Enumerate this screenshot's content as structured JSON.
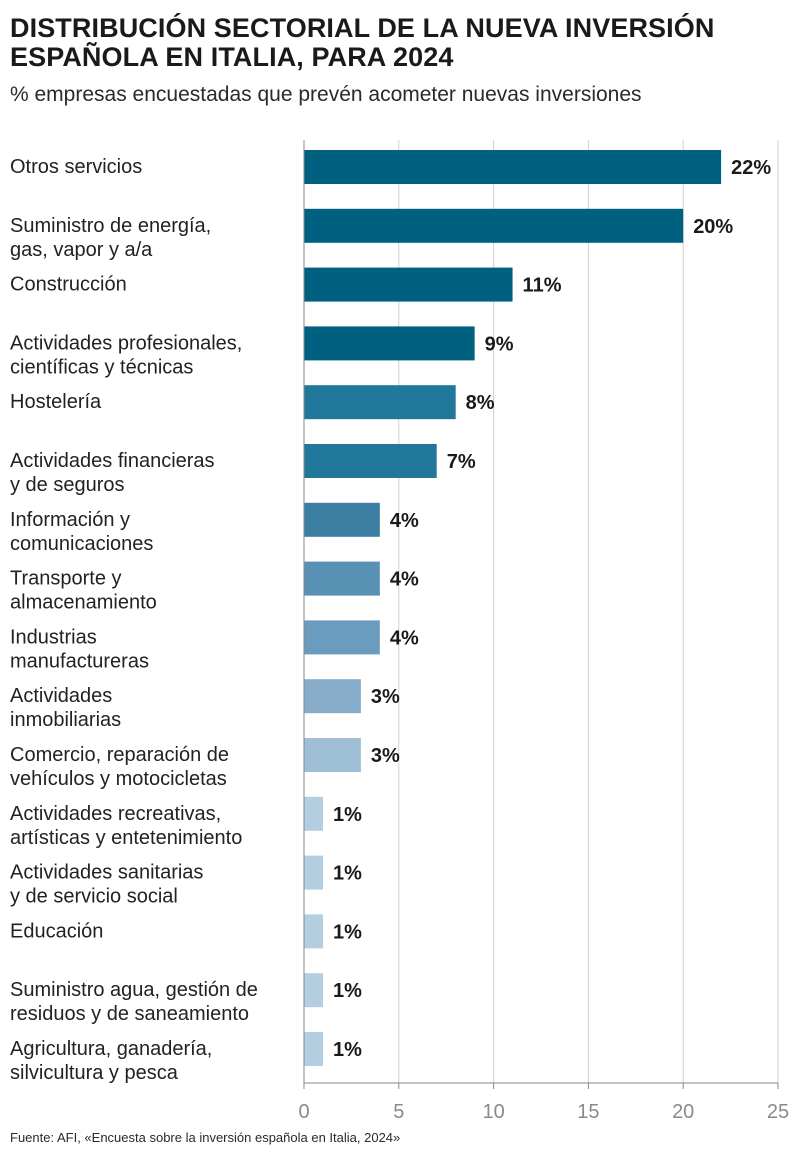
{
  "title": "DISTRIBUCIÓN SECTORIAL DE LA NUEVA INVERSIÓN ESPAÑOLA EN ITALIA, PARA 2024",
  "subtitle": "% empresas encuestadas que prevén acometer nuevas inversiones",
  "source": "Fuente: AFI, «Encuesta sobre la inversión española en Italia, 2024»",
  "chart_data": {
    "type": "bar",
    "orientation": "horizontal",
    "title": "DISTRIBUCIÓN SECTORIAL DE LA NUEVA INVERSIÓN ESPAÑOLA EN ITALIA, PARA 2024",
    "subtitle": "% empresas encuestadas que prevén acometer nuevas inversiones",
    "xlim": [
      0,
      25
    ],
    "xticks": [
      0,
      5,
      10,
      15,
      20,
      25
    ],
    "grid": true,
    "categories": [
      [
        "Otros servicios"
      ],
      [
        "Suministro de energía,",
        "gas, vapor y a/a"
      ],
      [
        "Construcción"
      ],
      [
        "Actividades profesionales,",
        "científicas y técnicas"
      ],
      [
        "Hostelería"
      ],
      [
        "Actividades financieras",
        "y de seguros"
      ],
      [
        "Información y",
        "comunicaciones"
      ],
      [
        "Transporte y",
        "almacenamiento"
      ],
      [
        "Industrias",
        "manufactureras"
      ],
      [
        "Actividades",
        "inmobiliarias"
      ],
      [
        "Comercio, reparación de",
        "vehículos y motocicletas"
      ],
      [
        "Actividades recreativas,",
        "artísticas y entetenimiento"
      ],
      [
        "Actividades sanitarias",
        "y de servicio social"
      ],
      [
        "Educación"
      ],
      [
        "Suministro agua, gestión de",
        "residuos y de saneamiento"
      ],
      [
        "Agricultura, ganadería,",
        "silvicultura y pesca"
      ]
    ],
    "values": [
      22,
      20,
      11,
      9,
      8,
      7,
      4,
      4,
      4,
      3,
      3,
      1,
      1,
      1,
      1,
      1
    ],
    "value_labels": [
      "22%",
      "20%",
      "11%",
      "9%",
      "8%",
      "7%",
      "4%",
      "4%",
      "4%",
      "3%",
      "3%",
      "1%",
      "1%",
      "1%",
      "1%",
      "1%"
    ],
    "colors": [
      "#00607f",
      "#00607f",
      "#00607f",
      "#00607f",
      "#22789a",
      "#22789a",
      "#3d7ea3",
      "#5991b5",
      "#6a9cbf",
      "#87acca",
      "#9ebfd6",
      "#b4cee1",
      "#b4cee1",
      "#b4cee1",
      "#b4cee1",
      "#b4cee1"
    ],
    "axis_color": "#888888",
    "grid_color": "#d0d0d0"
  }
}
